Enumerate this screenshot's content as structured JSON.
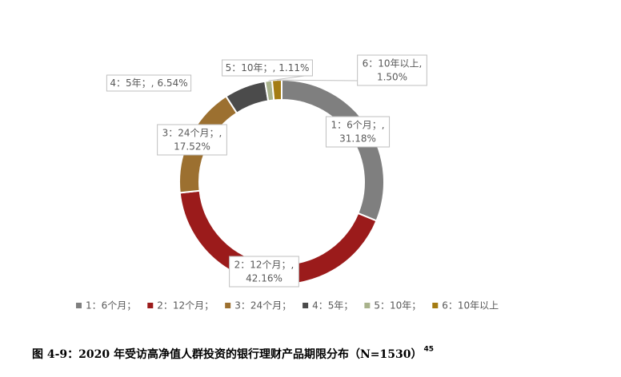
{
  "chart_data": {
    "type": "donut",
    "categories": [
      "1：6个月；",
      "2：12个月；",
      "3：24个月；",
      "4：5年；",
      "5：10年；",
      "6：10年以上"
    ],
    "label_names": [
      "1：6个月；,",
      "2：12个月；,",
      "3：24个月；,",
      "4：5年；,",
      "5：10年；,",
      "6：10年以上,"
    ],
    "values": [
      31.18,
      42.16,
      17.52,
      6.54,
      1.11,
      1.5
    ],
    "value_labels": [
      "31.18%",
      "42.16%",
      "17.52%",
      "6.54%",
      "1.11%",
      "1.50%"
    ],
    "colors": [
      "#7f7f7f",
      "#9b1b1b",
      "#9c7030",
      "#4b4b4b",
      "#a9b38c",
      "#a47c12"
    ],
    "legend": "bottom"
  },
  "caption": {
    "text": "图 4-9：2020 年受访高净值人群投资的银行理财产品期限分布（N=1530）",
    "footnote": "45"
  }
}
